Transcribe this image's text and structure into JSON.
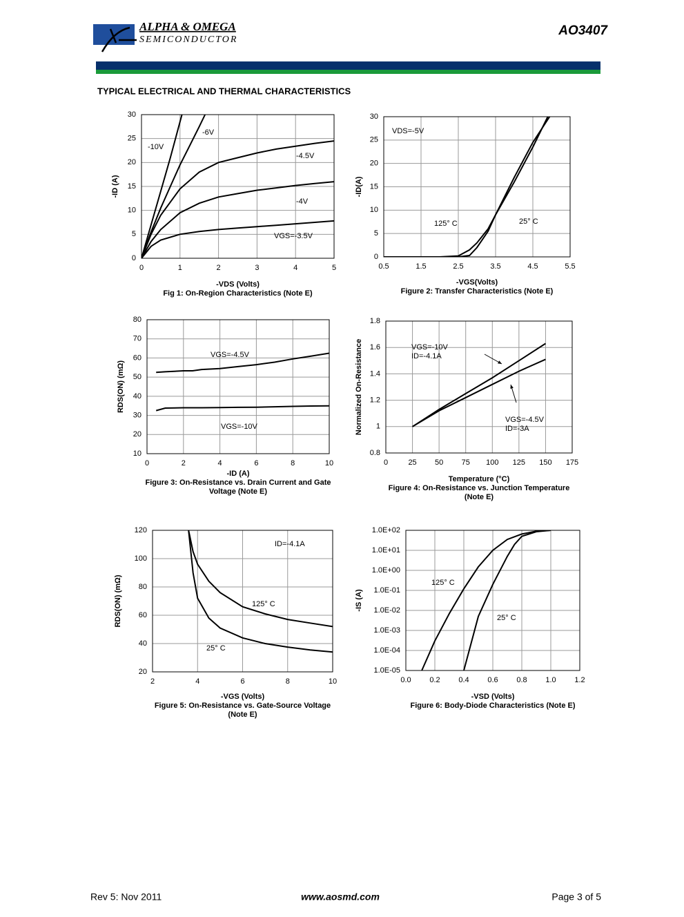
{
  "header": {
    "company": "ALPHA & OMEGA",
    "division": "SEMICONDUCTOR",
    "part": "AO3407"
  },
  "section_title": "TYPICAL ELECTRICAL AND THERMAL CHARACTERISTICS",
  "footer": {
    "revision": "Rev 5: Nov 2011",
    "website": "www.aosmd.com",
    "page": "Page 3 of 5"
  },
  "chart_data": [
    {
      "type": "line",
      "xlabel": "-VDS (Volts)",
      "ylabel": "-ID (A)",
      "caption": [
        "Fig 1: On-Region Characteristics (Note E)"
      ],
      "xlim": [
        0,
        5
      ],
      "xticks": [
        0,
        1,
        2,
        3,
        4,
        5
      ],
      "ylim": [
        0,
        30
      ],
      "yticks": [
        0,
        5,
        10,
        15,
        20,
        25,
        30
      ],
      "grid": true,
      "series": [
        {
          "name": "-10V",
          "color": "#000000",
          "x": [
            0,
            0.25,
            0.5,
            0.75,
            1.05
          ],
          "values": [
            0,
            7,
            14,
            21,
            30
          ]
        },
        {
          "name": "-6V",
          "color": "#000000",
          "x": [
            0,
            0.25,
            0.5,
            0.75,
            1,
            1.25,
            1.5,
            1.65
          ],
          "values": [
            0,
            5.5,
            10.5,
            15,
            19.5,
            23.5,
            27.5,
            30
          ]
        },
        {
          "name": "-4.5V",
          "color": "#000000",
          "x": [
            0,
            0.25,
            0.5,
            1,
            1.5,
            2,
            2.5,
            3,
            3.5,
            4,
            4.5,
            5
          ],
          "values": [
            0,
            5,
            9,
            14.5,
            18,
            20,
            21,
            22,
            22.8,
            23.4,
            24,
            24.5
          ]
        },
        {
          "name": "-4V",
          "color": "#000000",
          "x": [
            0,
            0.25,
            0.5,
            1,
            1.5,
            2,
            2.5,
            3,
            3.5,
            4,
            4.5,
            5
          ],
          "values": [
            0,
            3.5,
            6,
            9.5,
            11.5,
            12.8,
            13.5,
            14.2,
            14.7,
            15.2,
            15.6,
            16
          ]
        },
        {
          "name": "VGS=-3.5V",
          "color": "#000000",
          "x": [
            0,
            0.25,
            0.5,
            1,
            1.5,
            2,
            2.5,
            3,
            3.5,
            4,
            4.5,
            5
          ],
          "values": [
            0,
            2.5,
            3.8,
            5,
            5.6,
            6,
            6.3,
            6.6,
            6.9,
            7.2,
            7.5,
            7.8
          ]
        }
      ]
    },
    {
      "type": "line",
      "xlabel": "-VGS(Volts)",
      "ylabel": "-ID(A)",
      "caption": [
        "Figure 2: Transfer Characteristics (Note E)"
      ],
      "annotations": [
        "VDS=-5V"
      ],
      "xlim": [
        0.5,
        5.5
      ],
      "xticks": [
        0.5,
        1.5,
        2.5,
        3.5,
        4.5,
        5.5
      ],
      "ylim": [
        0,
        30
      ],
      "yticks": [
        0,
        5,
        10,
        15,
        20,
        25,
        30
      ],
      "grid": true,
      "series": [
        {
          "name": "125° C",
          "color": "#000000",
          "x": [
            0.5,
            2,
            2.5,
            2.8,
            3,
            3.3,
            3.5,
            4,
            4.5,
            4.9
          ],
          "values": [
            0,
            0,
            0.2,
            1.5,
            3,
            6,
            9,
            16,
            23.5,
            30
          ]
        },
        {
          "name": "25° C",
          "color": "#000000",
          "x": [
            0.5,
            2.5,
            2.8,
            3,
            3.3,
            3.5,
            4,
            4.5,
            4.95
          ],
          "values": [
            0,
            0,
            0.3,
            2,
            5.5,
            9,
            17,
            24.5,
            30
          ]
        }
      ]
    },
    {
      "type": "line",
      "xlabel": "-ID (A)",
      "ylabel": "RDS(ON) (mΩ)",
      "caption": [
        "Figure 3: On-Resistance vs. Drain Current and Gate",
        "Voltage (Note E)"
      ],
      "xlim": [
        0,
        10
      ],
      "xticks": [
        0,
        2,
        4,
        6,
        8,
        10
      ],
      "ylim": [
        10,
        80
      ],
      "yticks": [
        10,
        20,
        30,
        40,
        50,
        60,
        70,
        80
      ],
      "grid": true,
      "series": [
        {
          "name": "VGS=-4.5V",
          "color": "#000000",
          "x": [
            0.5,
            1,
            2,
            2.5,
            3,
            4,
            5,
            6,
            7,
            8,
            9,
            10
          ],
          "values": [
            52.5,
            52.8,
            53.3,
            53.3,
            54,
            54.5,
            55.5,
            56.5,
            57.8,
            59.5,
            61,
            62.5
          ]
        },
        {
          "name": "VGS=-10V",
          "color": "#000000",
          "x": [
            0.5,
            1,
            2,
            2.5,
            3,
            4,
            5,
            6,
            7,
            8,
            9,
            10
          ],
          "values": [
            32.5,
            33.8,
            34,
            34,
            34,
            34.1,
            34.2,
            34.3,
            34.5,
            34.7,
            34.9,
            35
          ]
        }
      ]
    },
    {
      "type": "line",
      "xlabel": "Temperature (°C)",
      "ylabel": "Normalized On-Resistance",
      "caption": [
        "Figure 4: On-Resistance vs. Junction Temperature",
        "(Note E)"
      ],
      "annotations": [
        "ID=-4.1A",
        "ID=-3A"
      ],
      "xlim": [
        0,
        175
      ],
      "xticks": [
        0,
        25,
        50,
        75,
        100,
        125,
        150,
        175
      ],
      "ylim": [
        0.8,
        1.8
      ],
      "yticks": [
        0.8,
        1,
        1.2,
        1.4,
        1.6,
        1.8
      ],
      "grid": true,
      "series": [
        {
          "name": "VGS=-10V",
          "color": "#000000",
          "x": [
            25,
            50,
            75,
            100,
            125,
            150
          ],
          "values": [
            1,
            1.13,
            1.25,
            1.37,
            1.5,
            1.63
          ]
        },
        {
          "name": "VGS=-4.5V",
          "color": "#000000",
          "x": [
            25,
            50,
            75,
            100,
            125,
            150
          ],
          "values": [
            1,
            1.12,
            1.22,
            1.32,
            1.42,
            1.51
          ]
        }
      ]
    },
    {
      "type": "line",
      "xlabel": "-VGS (Volts)",
      "ylabel": "RDS(ON) (mΩ)",
      "caption": [
        "Figure 5: On-Resistance vs. Gate-Source Voltage",
        "(Note E)"
      ],
      "annotations": [
        "ID=-4.1A"
      ],
      "xlim": [
        2,
        10
      ],
      "xticks": [
        2,
        4,
        6,
        8,
        10
      ],
      "ylim": [
        20,
        120
      ],
      "yticks": [
        20,
        40,
        60,
        80,
        100,
        120
      ],
      "grid": true,
      "series": [
        {
          "name": "125° C",
          "color": "#000000",
          "x": [
            3.6,
            3.8,
            4,
            4.5,
            5,
            6,
            7,
            8,
            9,
            10
          ],
          "values": [
            120,
            105,
            96,
            84,
            76,
            66,
            61,
            57,
            54.5,
            52
          ]
        },
        {
          "name": "25° C",
          "color": "#000000",
          "x": [
            3.6,
            3.8,
            4,
            4.5,
            5,
            6,
            7,
            8,
            9,
            10
          ],
          "values": [
            120,
            90,
            72,
            58,
            51,
            44,
            40,
            37.5,
            35.5,
            34
          ]
        }
      ]
    },
    {
      "type": "line",
      "xlabel": "-VSD (Volts)",
      "ylabel": "-IS (A)",
      "caption": [
        "Figure 6: Body-Diode Characteristics (Note E)"
      ],
      "ylog": true,
      "xlim": [
        0,
        1.2
      ],
      "xticks": [
        {
          "value": 0,
          "label": "0.0"
        },
        0.2,
        0.4,
        0.6,
        0.8,
        {
          "value": 1,
          "label": "1.0"
        },
        1.2
      ],
      "ylim": [
        1e-05,
        100
      ],
      "yticks": [
        {
          "value": 1e-05,
          "label": "1.0E-05"
        },
        {
          "value": 0.0001,
          "label": "1.0E-04"
        },
        {
          "value": 0.001,
          "label": "1.0E-03"
        },
        {
          "value": 0.01,
          "label": "1.0E-02"
        },
        {
          "value": 0.1,
          "label": "1.0E-01"
        },
        {
          "value": 1,
          "label": "1.0E+00"
        },
        {
          "value": 10,
          "label": "1.0E+01"
        },
        {
          "value": 100,
          "label": "1.0E+02"
        }
      ],
      "grid": true,
      "series": [
        {
          "name": "125° C",
          "color": "#000000",
          "x": [
            0.11,
            0.2,
            0.3,
            0.4,
            0.5,
            0.6,
            0.7,
            0.8,
            0.9,
            1.0
          ],
          "values": [
            1e-05,
            0.0003,
            0.007,
            0.12,
            1.5,
            10,
            35,
            65,
            90,
            100
          ]
        },
        {
          "name": "25° C",
          "color": "#000000",
          "x": [
            0.4,
            0.5,
            0.6,
            0.7,
            0.75,
            0.8,
            0.9,
            1.0
          ],
          "values": [
            1e-05,
            0.005,
            0.2,
            5,
            20,
            50,
            85,
            100
          ]
        }
      ]
    }
  ]
}
